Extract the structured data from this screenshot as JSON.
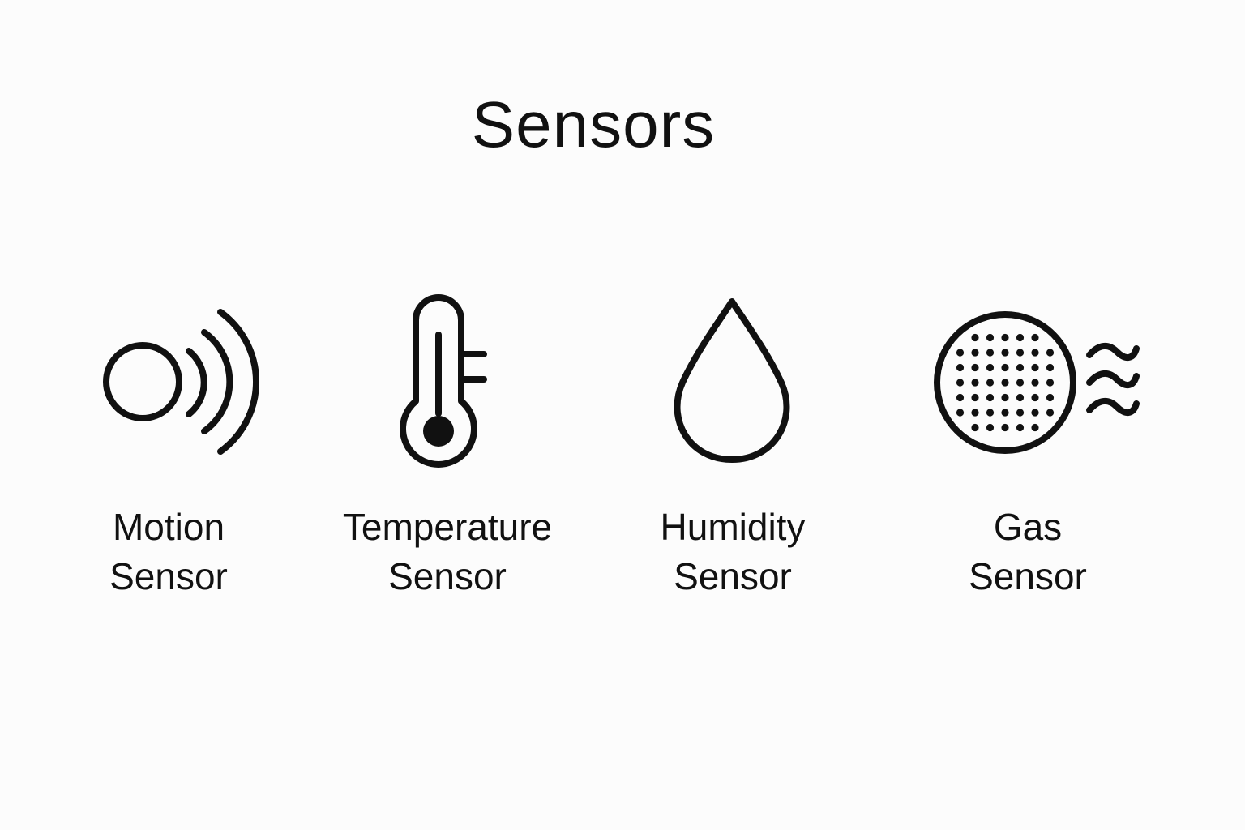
{
  "title": "Sensors",
  "colors": {
    "background": "#fcfcfc",
    "ink": "#111111"
  },
  "sensors": [
    {
      "icon": "motion-sensor-icon",
      "line1": "Motion",
      "line2": "Sensor"
    },
    {
      "icon": "thermometer-icon",
      "line1": "Temperature",
      "line2": "Sensor"
    },
    {
      "icon": "water-drop-icon",
      "line1": "Humidity",
      "line2": "Sensor"
    },
    {
      "icon": "gas-sensor-icon",
      "line1": "Gas",
      "line2": "Sensor"
    }
  ]
}
